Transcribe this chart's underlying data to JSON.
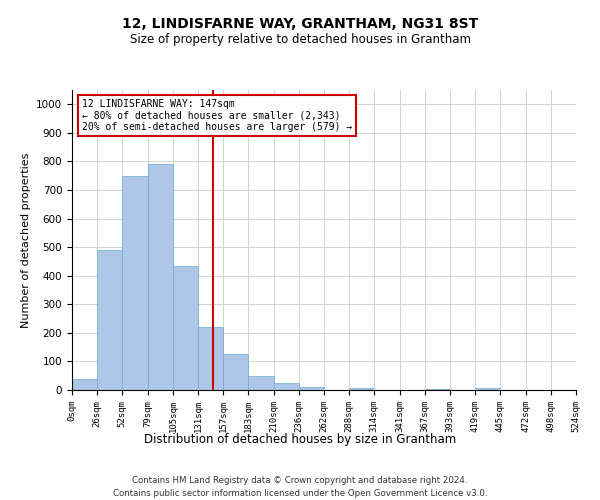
{
  "title": "12, LINDISFARNE WAY, GRANTHAM, NG31 8ST",
  "subtitle": "Size of property relative to detached houses in Grantham",
  "xlabel": "Distribution of detached houses by size in Grantham",
  "ylabel": "Number of detached properties",
  "footnote1": "Contains HM Land Registry data © Crown copyright and database right 2024.",
  "footnote2": "Contains public sector information licensed under the Open Government Licence v3.0.",
  "property_size": 147,
  "property_label": "12 LINDISFARNE WAY: 147sqm",
  "annotation_line1": "← 80% of detached houses are smaller (2,343)",
  "annotation_line2": "20% of semi-detached houses are larger (579) →",
  "bar_color": "#aec6e8",
  "bar_edge_color": "#6aaad4",
  "vline_color": "#cc0000",
  "annotation_box_color": "#cc0000",
  "bin_edges": [
    0,
    26,
    52,
    79,
    105,
    131,
    157,
    183,
    210,
    236,
    262,
    288,
    314,
    341,
    367,
    393,
    419,
    445,
    472,
    498,
    524
  ],
  "bin_labels": [
    "0sqm",
    "26sqm",
    "52sqm",
    "79sqm",
    "105sqm",
    "131sqm",
    "157sqm",
    "183sqm",
    "210sqm",
    "236sqm",
    "262sqm",
    "288sqm",
    "314sqm",
    "341sqm",
    "367sqm",
    "393sqm",
    "419sqm",
    "445sqm",
    "472sqm",
    "498sqm",
    "524sqm"
  ],
  "bar_heights": [
    40,
    490,
    750,
    790,
    435,
    220,
    125,
    50,
    25,
    12,
    0,
    8,
    0,
    0,
    5,
    0,
    8,
    0,
    0,
    0
  ],
  "ylim": [
    0,
    1050
  ],
  "yticks": [
    0,
    100,
    200,
    300,
    400,
    500,
    600,
    700,
    800,
    900,
    1000
  ]
}
